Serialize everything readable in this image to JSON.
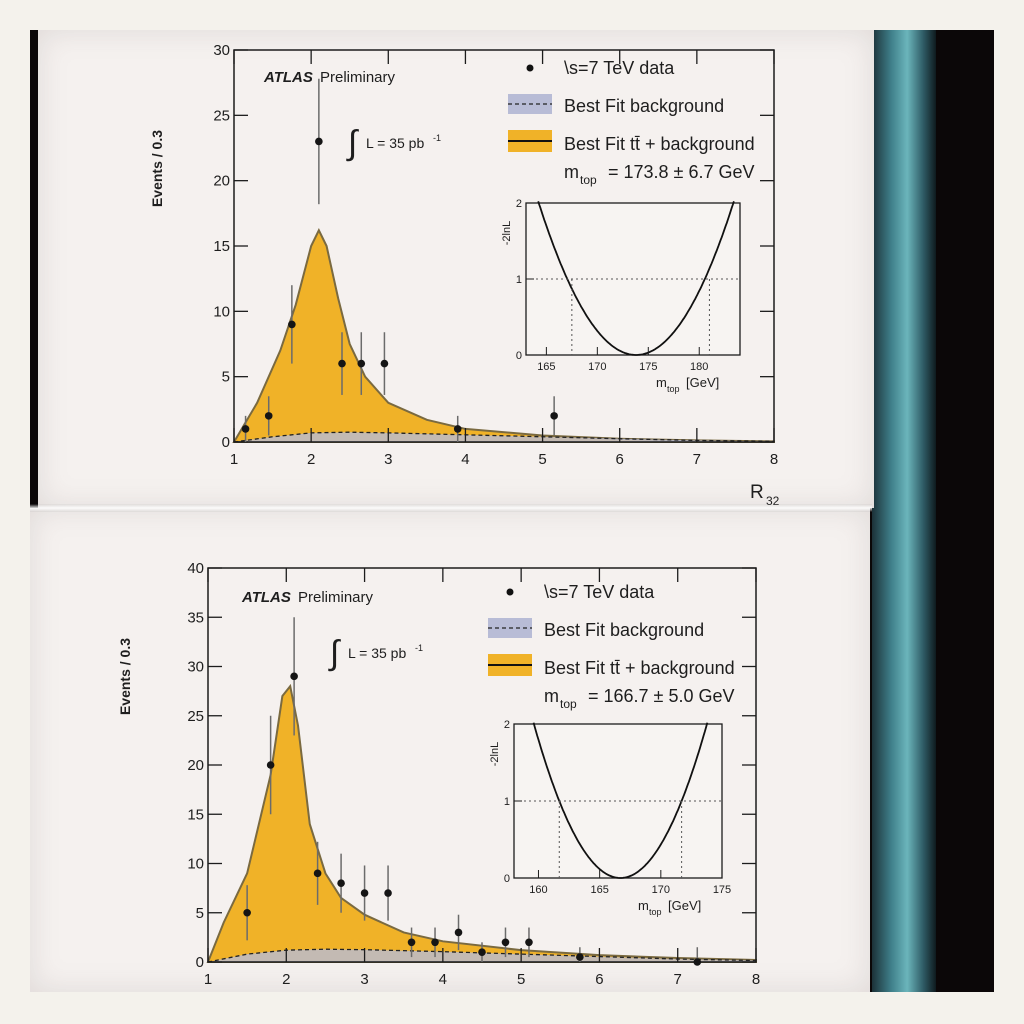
{
  "colors": {
    "signal_fill": "#f0b228",
    "signal_line": "#7a6a40",
    "background_fill": "#b8bcd6",
    "data_marker": "#151515",
    "paper": "#f5f1ef"
  },
  "plots": [
    {
      "id": "top",
      "experiment": "ATLAS",
      "experiment_status": "Preliminary",
      "lumi_text": "L = 35 pb",
      "lumi_sup": "-1",
      "legend": {
        "data": "\\s=7 TeV data",
        "background": "Best Fit background",
        "signal": "Best Fit tt̄ + background",
        "mtop_label": "m",
        "mtop_sub": "top",
        "mtop_value": "= 173.8 ± 6.7 GeV"
      },
      "ylabel": "Events / 0.3",
      "xlabel": "R",
      "xlabel_sub": "32",
      "chart_data": {
        "type": "area",
        "xlim": [
          1,
          8
        ],
        "ylim": [
          0,
          30
        ],
        "yticks": [
          "0",
          "5",
          "10",
          "15",
          "20",
          "25",
          "30"
        ],
        "xticks": [
          "1",
          "2",
          "3",
          "4",
          "5",
          "6",
          "7",
          "8"
        ],
        "data_points": {
          "x": [
            1.15,
            1.45,
            1.75,
            2.1,
            2.4,
            2.65,
            2.95,
            3.9,
            5.15
          ],
          "y": [
            1,
            2,
            9,
            23,
            6,
            6,
            6,
            1,
            2
          ],
          "err": [
            1,
            1.5,
            3,
            4.8,
            2.4,
            2.4,
            2.4,
            1,
            1.5
          ]
        },
        "signal_plus_background": {
          "x": [
            1,
            1.3,
            1.6,
            1.8,
            2.0,
            2.1,
            2.2,
            2.35,
            2.5,
            2.7,
            3.0,
            3.5,
            4.0,
            5.0,
            6.0,
            7.0,
            8.0
          ],
          "y": [
            0,
            3,
            7,
            10.5,
            15,
            16.2,
            15,
            11,
            7.5,
            5,
            3,
            1.7,
            1.0,
            0.5,
            0.25,
            0.12,
            0.05
          ]
        },
        "background": {
          "x": [
            1,
            1.5,
            2.0,
            2.5,
            3.0,
            4.0,
            5.0,
            6.0,
            7.0,
            8.0
          ],
          "y": [
            0,
            0.4,
            0.7,
            0.75,
            0.7,
            0.55,
            0.4,
            0.25,
            0.12,
            0.05
          ]
        }
      },
      "inset": {
        "ylabel": "-2lnL",
        "xlabel": "m",
        "xlabel_sub": "top",
        "xlabel_unit": "[GeV]",
        "xlim": [
          163,
          184
        ],
        "ylim": [
          0,
          2
        ],
        "xticks": [
          "165",
          "170",
          "175",
          "180"
        ],
        "yticks": [
          "0",
          "1",
          "2"
        ],
        "minimum": 173.8,
        "crossings": [
          167.5,
          181.0
        ]
      }
    },
    {
      "id": "bottom",
      "experiment": "ATLAS",
      "experiment_status": "Preliminary",
      "lumi_text": "L = 35 pb",
      "lumi_sup": "-1",
      "legend": {
        "data": "\\s=7 TeV data",
        "background": "Best Fit background",
        "signal": "Best Fit tt̄ + background",
        "mtop_label": "m",
        "mtop_sub": "top",
        "mtop_value": "= 166.7 ± 5.0 GeV"
      },
      "ylabel": "Events / 0.3",
      "chart_data": {
        "type": "area",
        "xlim": [
          1,
          8
        ],
        "ylim": [
          0,
          40
        ],
        "yticks": [
          "0",
          "5",
          "10",
          "15",
          "20",
          "25",
          "30",
          "35",
          "40"
        ],
        "xticks": [
          "1",
          "2",
          "3",
          "4",
          "5",
          "6",
          "7",
          "8"
        ],
        "data_points": {
          "x": [
            1.5,
            1.8,
            2.1,
            2.4,
            2.7,
            3.0,
            3.3,
            3.6,
            3.9,
            4.2,
            4.5,
            4.8,
            5.1,
            5.75,
            7.25
          ],
          "y": [
            5,
            20,
            29,
            9,
            8,
            7,
            7,
            2,
            2,
            3,
            1,
            2,
            2,
            0.5,
            0
          ],
          "err": [
            2.8,
            5,
            6,
            3.2,
            3,
            2.8,
            2.8,
            1.5,
            1.5,
            1.8,
            1,
            1.5,
            1.5,
            1,
            1.5
          ]
        },
        "signal_plus_background": {
          "x": [
            1,
            1.2,
            1.5,
            1.8,
            1.95,
            2.05,
            2.15,
            2.3,
            2.5,
            2.7,
            3.0,
            3.5,
            4.0,
            5.0,
            6.0,
            7.0,
            8.0
          ],
          "y": [
            0,
            4,
            9,
            19,
            27,
            28,
            24,
            14,
            9,
            6.5,
            4.8,
            3,
            2.1,
            1.2,
            0.7,
            0.4,
            0.2
          ]
        },
        "background": {
          "x": [
            1,
            1.5,
            2.0,
            2.5,
            3.0,
            4.0,
            5.0,
            6.0,
            7.0,
            8.0
          ],
          "y": [
            0,
            0.8,
            1.2,
            1.3,
            1.25,
            1.05,
            0.8,
            0.55,
            0.3,
            0.15
          ]
        }
      },
      "inset": {
        "ylabel": "-2lnL",
        "xlabel": "m",
        "xlabel_sub": "top",
        "xlabel_unit": "[GeV]",
        "xlim": [
          158,
          175
        ],
        "ylim": [
          0,
          2
        ],
        "xticks": [
          "160",
          "165",
          "170",
          "175"
        ],
        "yticks": [
          "0",
          "1",
          "2"
        ],
        "minimum": 166.7,
        "crossings": [
          161.7,
          171.7
        ]
      }
    }
  ]
}
